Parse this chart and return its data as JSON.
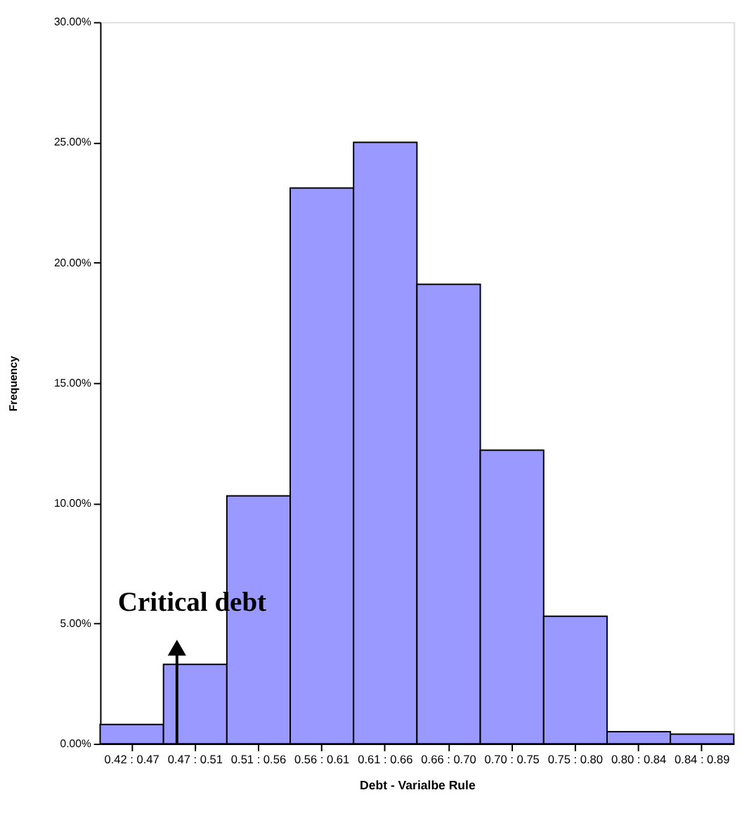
{
  "chart_data": {
    "type": "bar",
    "xlabel": "Debt - Varialbe Rule",
    "ylabel": "Frequency",
    "categories": [
      "0.42 : 0.47",
      "0.47 : 0.51",
      "0.51 : 0.56",
      "0.56 : 0.61",
      "0.61 : 0.66",
      "0.66 : 0.70",
      "0.70 : 0.75",
      "0.75 : 0.80",
      "0.80 : 0.84",
      "0.84 : 0.89"
    ],
    "values": [
      0.8,
      3.3,
      10.3,
      23.1,
      25.0,
      19.1,
      12.2,
      5.3,
      0.5,
      0.4
    ],
    "color": "#9999ff",
    "ylim": [
      0,
      30
    ],
    "yticks": [
      {
        "value": 0,
        "label": "0.00%"
      },
      {
        "value": 5,
        "label": "5.00%"
      },
      {
        "value": 10,
        "label": "10.00%"
      },
      {
        "value": 15,
        "label": "15.00%"
      },
      {
        "value": 20,
        "label": "20.00%"
      },
      {
        "value": 25,
        "label": "25.00%"
      },
      {
        "value": 30,
        "label": "30.00%"
      }
    ],
    "grid": false,
    "annotations": [
      "Critical debt"
    ]
  }
}
